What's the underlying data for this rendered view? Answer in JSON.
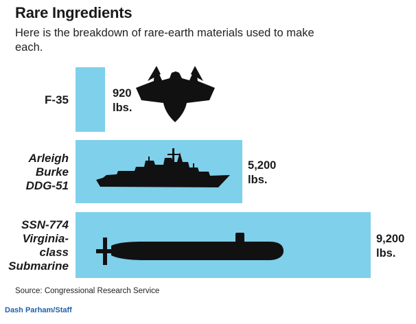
{
  "title": "Rare Ingredients",
  "subtitle": "Here is the breakdown of rare-earth materials used to make each.",
  "source": "Source: Congressional Research Service",
  "credit": "Dash Parham/Staff",
  "colors": {
    "bar": "#7fd0ea",
    "silhouette": "#111111"
  },
  "chart_data": {
    "type": "bar",
    "orientation": "horizontal",
    "title": "Rare Ingredients",
    "subtitle": "Here is the breakdown of rare-earth materials used to make each.",
    "unit": "lbs.",
    "categories": [
      {
        "lines": [
          "F-35"
        ],
        "italic": false,
        "icon": "fighter-jet-icon"
      },
      {
        "lines": [
          "Arleigh",
          "Burke",
          "DDG-51"
        ],
        "italic": true,
        "icon": "destroyer-ship-icon"
      },
      {
        "lines": [
          "SSN-774",
          "Virginia-",
          "class",
          "Submarine"
        ],
        "italic": true,
        "icon": "submarine-icon"
      }
    ],
    "values": [
      920,
      5200,
      9200
    ],
    "value_labels": [
      [
        "920",
        "lbs."
      ],
      [
        "5,200",
        "lbs."
      ],
      [
        "9,200",
        "lbs."
      ]
    ],
    "xlim": [
      0,
      9200
    ],
    "grid": false,
    "legend": "none"
  }
}
